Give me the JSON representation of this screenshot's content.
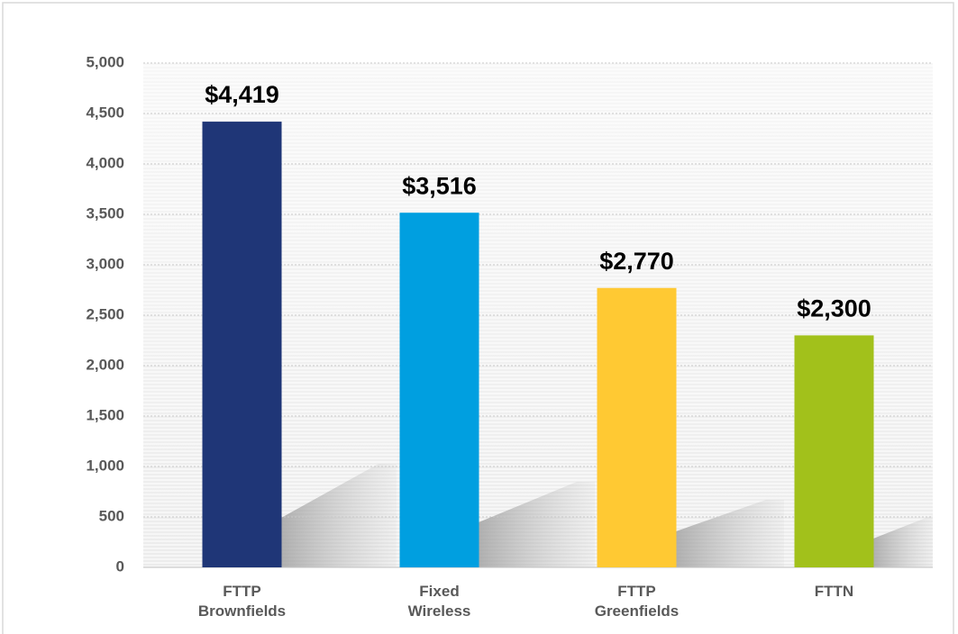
{
  "chart_data": {
    "type": "bar",
    "categories": [
      "FTTP Brownfields",
      "Fixed Wireless",
      "FTTP Greenfields",
      "FTTN"
    ],
    "values": [
      4419,
      3516,
      2770,
      2300
    ],
    "value_labels": [
      "$4,419",
      "$3,516",
      "$2,770",
      "$2,300"
    ],
    "colors": [
      "#1f3677",
      "#009fe0",
      "#ffc933",
      "#a2c11b"
    ],
    "ylim": [
      0,
      5000
    ],
    "yticks": [
      0,
      500,
      {
        "value": 1000,
        "label": "1,000"
      },
      {
        "value": 1500,
        "label": "1,500"
      },
      {
        "value": 2000,
        "label": "2,000"
      },
      {
        "value": 2500,
        "label": "2,500"
      },
      {
        "value": 3000,
        "label": "3,000"
      },
      {
        "value": 3500,
        "label": "3,500"
      },
      {
        "value": 4000,
        "label": "4,000"
      },
      {
        "value": 4500,
        "label": "4,500"
      },
      {
        "value": 5000,
        "label": "5,000"
      }
    ],
    "grid": true
  }
}
